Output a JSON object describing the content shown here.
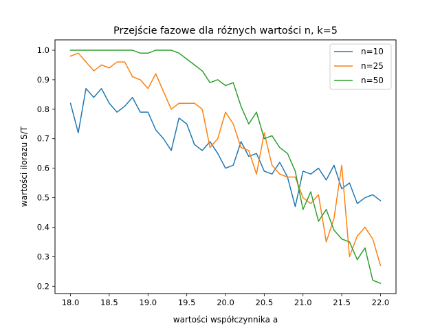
{
  "chart_data": {
    "type": "line",
    "title": "Przejście fazowe dla różnych wartości n, k=5",
    "xlabel": "wartości współczynnika a",
    "ylabel": "wartości ilorazu S/T",
    "xlim": [
      17.8,
      22.2
    ],
    "ylim": [
      0.175,
      1.035
    ],
    "xticks": [
      18.0,
      18.5,
      19.0,
      19.5,
      20.0,
      20.5,
      21.0,
      21.5,
      22.0
    ],
    "xtick_labels": [
      "18.0",
      "18.5",
      "19.0",
      "19.5",
      "20.0",
      "20.5",
      "21.0",
      "21.5",
      "22.0"
    ],
    "yticks": [
      0.2,
      0.3,
      0.4,
      0.5,
      0.6,
      0.7,
      0.8,
      0.9,
      1.0
    ],
    "ytick_labels": [
      "0.2",
      "0.3",
      "0.4",
      "0.5",
      "0.6",
      "0.7",
      "0.8",
      "0.9",
      "1.0"
    ],
    "grid": false,
    "legend_position": "top-right",
    "x": [
      18.0,
      18.1,
      18.2,
      18.3,
      18.4,
      18.5,
      18.6,
      18.7,
      18.8,
      18.9,
      19.0,
      19.1,
      19.2,
      19.3,
      19.4,
      19.5,
      19.6,
      19.7,
      19.8,
      19.9,
      20.0,
      20.1,
      20.2,
      20.3,
      20.4,
      20.5,
      20.6,
      20.7,
      20.8,
      20.9,
      21.0,
      21.1,
      21.2,
      21.3,
      21.4,
      21.5,
      21.6,
      21.7,
      21.8,
      21.9,
      22.0
    ],
    "series": [
      {
        "name": "n=10",
        "color": "#1f77b4",
        "values": [
          0.82,
          0.72,
          0.87,
          0.84,
          0.87,
          0.82,
          0.79,
          0.81,
          0.84,
          0.79,
          0.79,
          0.73,
          0.7,
          0.66,
          0.77,
          0.75,
          0.68,
          0.66,
          0.69,
          0.65,
          0.6,
          0.61,
          0.69,
          0.64,
          0.65,
          0.59,
          0.58,
          0.62,
          0.57,
          0.47,
          0.59,
          0.58,
          0.6,
          0.56,
          0.61,
          0.53,
          0.55,
          0.48,
          0.5,
          0.51,
          0.49
        ]
      },
      {
        "name": "n=25",
        "color": "#ff7f0e",
        "values": [
          0.98,
          0.99,
          0.96,
          0.93,
          0.95,
          0.94,
          0.96,
          0.96,
          0.91,
          0.9,
          0.87,
          0.92,
          0.86,
          0.8,
          0.82,
          0.82,
          0.82,
          0.8,
          0.67,
          0.7,
          0.79,
          0.75,
          0.67,
          0.66,
          0.58,
          0.72,
          0.61,
          0.58,
          0.57,
          0.57,
          0.5,
          0.48,
          0.51,
          0.35,
          0.43,
          0.61,
          0.3,
          0.37,
          0.4,
          0.36,
          0.27
        ]
      },
      {
        "name": "n=50",
        "color": "#2ca02c",
        "values": [
          1.0,
          1.0,
          1.0,
          1.0,
          1.0,
          1.0,
          1.0,
          1.0,
          1.0,
          0.99,
          0.99,
          1.0,
          1.0,
          1.0,
          0.99,
          0.97,
          0.95,
          0.93,
          0.89,
          0.9,
          0.88,
          0.89,
          0.81,
          0.75,
          0.79,
          0.7,
          0.71,
          0.67,
          0.65,
          0.59,
          0.46,
          0.52,
          0.42,
          0.46,
          0.39,
          0.36,
          0.35,
          0.29,
          0.33,
          0.22,
          0.21
        ]
      }
    ]
  }
}
